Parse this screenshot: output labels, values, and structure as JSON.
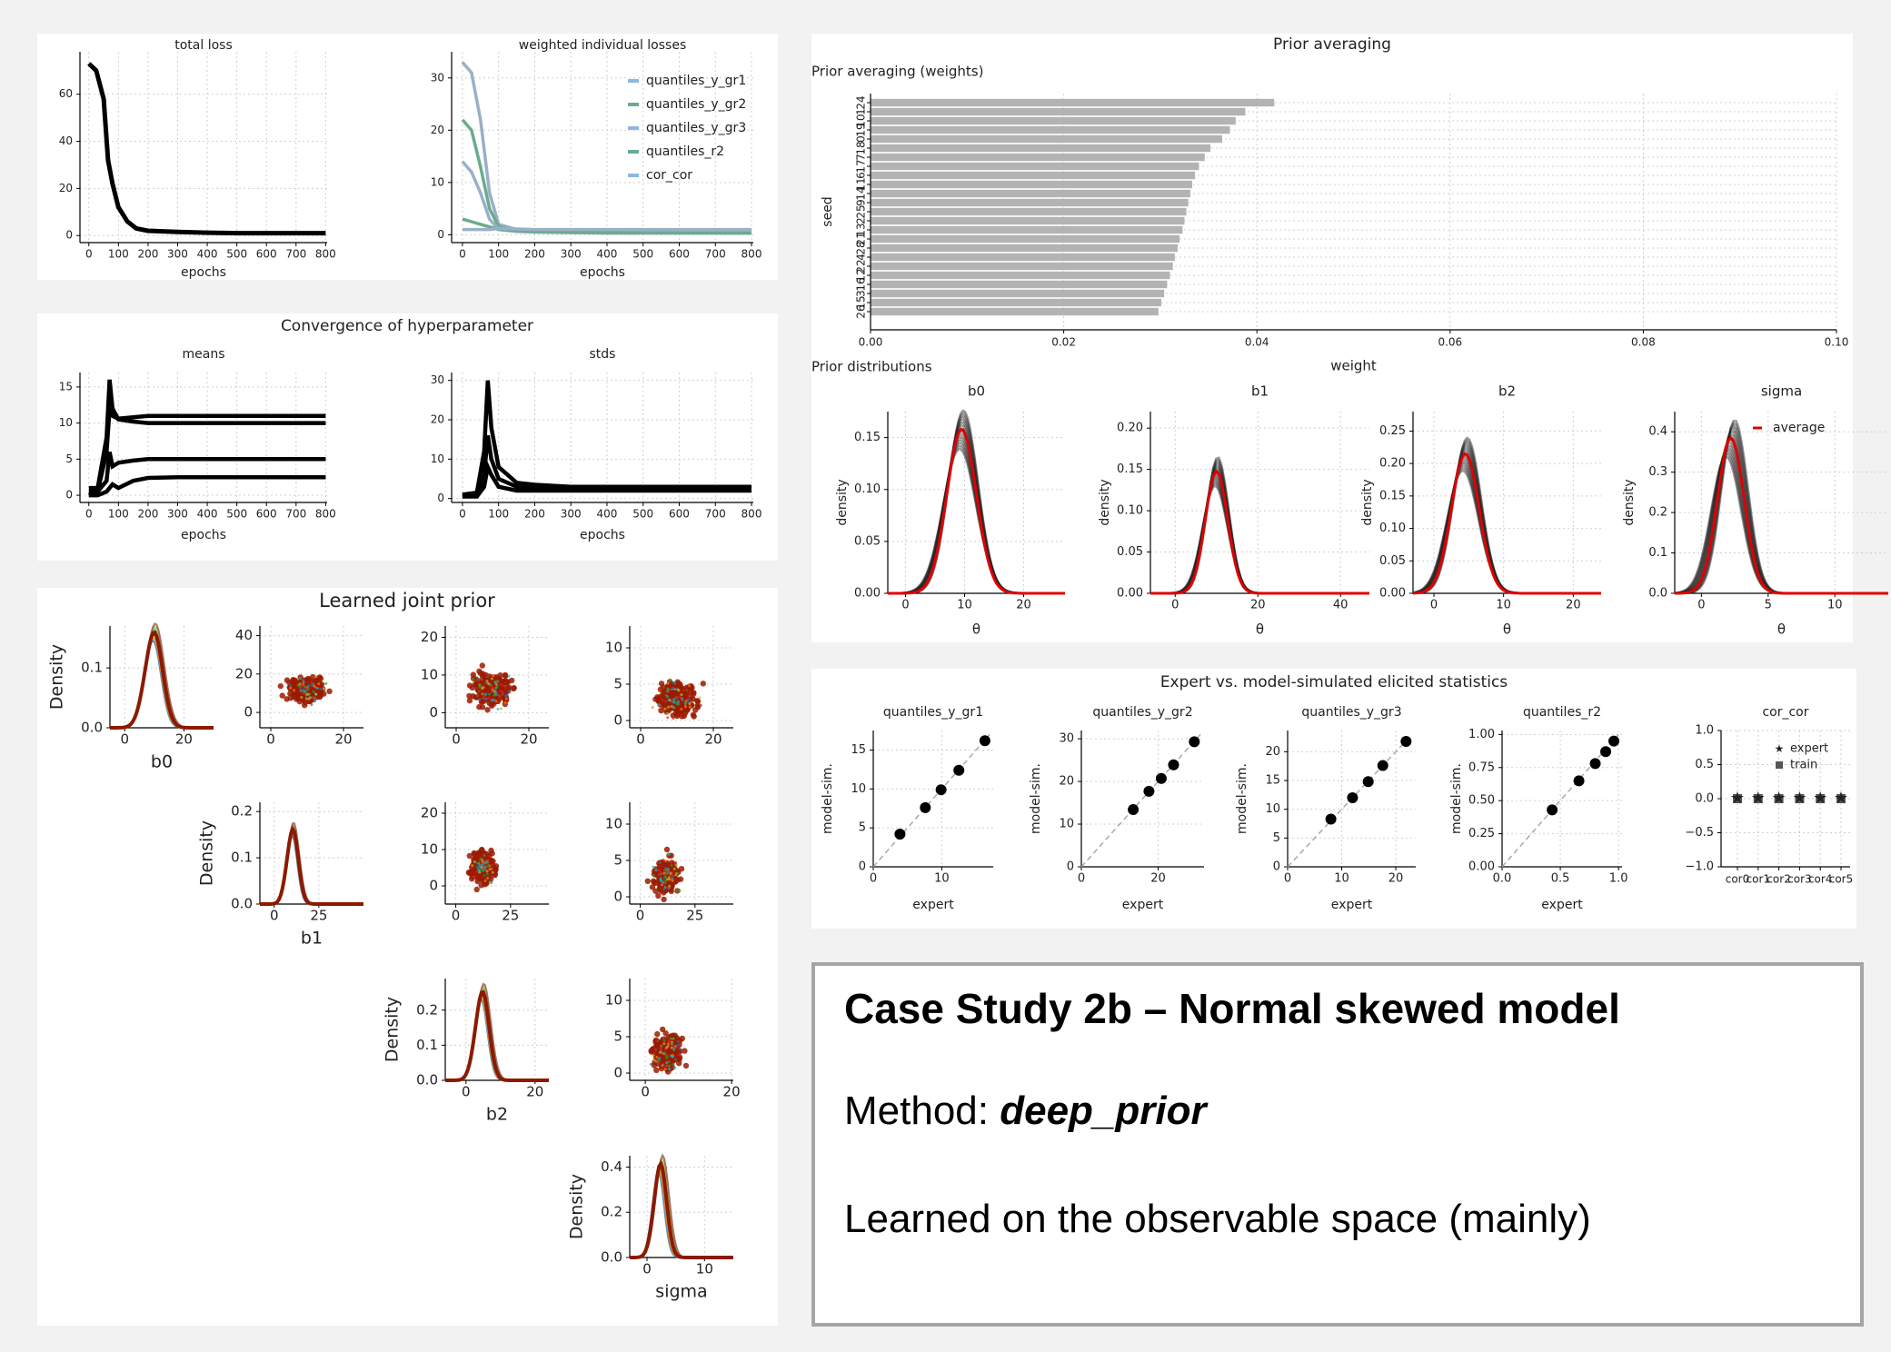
{
  "colors": {
    "loss_line": "#000000",
    "legend_blue": "#8fb8de",
    "legend_green": "#6aab8e",
    "average_line": "#e00000",
    "bar_fill": "#b3b3b3",
    "grid": "#d0d0d0"
  },
  "loss_panel": {
    "total_title": "total loss",
    "weighted_title": "weighted individual losses",
    "xlabel": "epochs",
    "x_ticks": [
      "0",
      "100",
      "200",
      "300",
      "400",
      "500",
      "600",
      "700",
      "800"
    ],
    "total_y_ticks": [
      "0",
      "20",
      "40",
      "60"
    ],
    "weighted_y_ticks": [
      "0",
      "10",
      "20",
      "30"
    ],
    "legend": [
      "quantiles_y_gr1",
      "quantiles_y_gr2",
      "quantiles_y_gr3",
      "quantiles_r2",
      "cor_cor"
    ]
  },
  "convergence_panel": {
    "title": "Convergence of hyperparameter",
    "means_title": "means",
    "stds_title": "stds",
    "xlabel": "epochs",
    "x_ticks": [
      "0",
      "100",
      "200",
      "300",
      "400",
      "500",
      "600",
      "700",
      "800"
    ],
    "means_y_ticks": [
      "0",
      "5",
      "10",
      "15"
    ],
    "stds_y_ticks": [
      "0",
      "10",
      "20",
      "30"
    ]
  },
  "joint_panel": {
    "title": "Learned joint prior",
    "density_label": "Density",
    "params": [
      "b0",
      "b1",
      "b2",
      "sigma"
    ],
    "b0_y_ticks": [
      "0.0",
      "0.1"
    ],
    "b1_y_ticks": [
      "0.0",
      "0.1",
      "0.2"
    ],
    "b2_y_ticks": [
      "0.0",
      "0.1",
      "0.2"
    ],
    "sigma_y_ticks": [
      "0.0",
      "0.2",
      "0.4"
    ],
    "b0_x_ticks": [
      "0",
      "20"
    ],
    "b1_x_ticks": [
      "0",
      "25"
    ],
    "b2_x_ticks": [
      "0",
      "20"
    ],
    "sigma_x_ticks": [
      "0",
      "10"
    ],
    "scatter_y_ticks": {
      "b1": [
        "0",
        "20",
        "40"
      ],
      "b2_row1": [
        "0",
        "10",
        "20"
      ],
      "sigma_row1": [
        "0",
        "5",
        "10"
      ],
      "b2_row2": [
        "0",
        "10",
        "20"
      ],
      "sigma_row2": [
        "0",
        "5",
        "10"
      ],
      "sigma_row3": [
        "0",
        "5",
        "10"
      ]
    }
  },
  "prior_panel": {
    "title": "Prior averaging",
    "weights_title": "Prior averaging (weights)",
    "seed_label": "seed",
    "weight_label": "weight",
    "dist_title": "Prior distributions",
    "theta_label": "θ",
    "density_label": "density",
    "average_label": "average",
    "x_ticks": [
      "0.00",
      "0.02",
      "0.04",
      "0.06",
      "0.08",
      "0.10"
    ],
    "dist_titles": [
      "b0",
      "b1",
      "b2",
      "sigma"
    ],
    "dist_y_ticks": [
      [
        "0.00",
        "0.05",
        "0.10",
        "0.15"
      ],
      [
        "0.00",
        "0.05",
        "0.10",
        "0.15",
        "0.20"
      ],
      [
        "0.00",
        "0.05",
        "0.10",
        "0.15",
        "0.20",
        "0.25"
      ],
      [
        "0.0",
        "0.1",
        "0.2",
        "0.3",
        "0.4"
      ]
    ],
    "dist_x_ticks": [
      [
        "0",
        "10",
        "20"
      ],
      [
        "0",
        "20",
        "40"
      ],
      [
        "0",
        "10",
        "20"
      ],
      [
        "0",
        "5",
        "10"
      ]
    ]
  },
  "elicit_panel": {
    "title": "Expert vs. model-simulated elicited statistics",
    "xlabel": "expert",
    "ylabel": "model-sim.",
    "subtitles": [
      "quantiles_y_gr1",
      "quantiles_y_gr2",
      "quantiles_y_gr3",
      "quantiles_r2",
      "cor_cor"
    ],
    "y_ticks": [
      [
        "0",
        "5",
        "10",
        "15"
      ],
      [
        "0",
        "10",
        "20",
        "30"
      ],
      [
        "0",
        "5",
        "10",
        "15",
        "20"
      ],
      [
        "0.00",
        "0.25",
        "0.50",
        "0.75",
        "1.00"
      ],
      [
        "−1.0",
        "−0.5",
        "0.0",
        "0.5",
        "1.0"
      ]
    ],
    "x_ticks": [
      [
        "0",
        "10"
      ],
      [
        "0",
        "20"
      ],
      [
        "0",
        "10",
        "20"
      ],
      [
        "0.0",
        "0.5",
        "1.0"
      ]
    ],
    "cor_x_ticks": [
      "cor0",
      "cor1",
      "cor2",
      "cor3",
      "cor4",
      "cor5"
    ],
    "legend_expert": "expert",
    "legend_train": "train"
  },
  "case_box": {
    "title": "Case Study 2b – Normal skewed model",
    "method_prefix": "Method: ",
    "method_name": "deep_prior",
    "note": "Learned on the observable space (mainly)"
  },
  "chart_data": [
    {
      "type": "line",
      "title": "total loss",
      "xlabel": "epochs",
      "xlim": [
        0,
        800
      ],
      "ylim": [
        0,
        75
      ],
      "x": [
        0,
        25,
        50,
        65,
        80,
        100,
        130,
        160,
        200,
        300,
        400,
        500,
        600,
        700,
        800
      ],
      "series": [
        {
          "values": [
            73,
            70,
            58,
            32,
            22,
            12,
            6,
            3,
            2,
            1.5,
            1.2,
            1,
            1,
            1,
            1
          ]
        }
      ]
    },
    {
      "type": "line",
      "title": "weighted individual losses",
      "xlabel": "epochs",
      "xlim": [
        0,
        800
      ],
      "ylim": [
        0,
        35
      ],
      "x": [
        0,
        25,
        50,
        75,
        100,
        150,
        200,
        300,
        400,
        500,
        600,
        700,
        800
      ],
      "series": [
        {
          "name": "quantiles_y_gr1",
          "values": [
            33,
            31,
            22,
            8,
            2,
            1,
            0.8,
            0.6,
            0.5,
            0.4,
            0.4,
            0.3,
            0.3
          ]
        },
        {
          "name": "quantiles_y_gr2",
          "values": [
            22,
            20,
            13,
            5,
            1.5,
            0.8,
            0.6,
            0.5,
            0.4,
            0.4,
            0.3,
            0.3,
            0.3
          ]
        },
        {
          "name": "quantiles_y_gr3",
          "values": [
            14,
            12,
            8,
            3,
            1,
            0.6,
            0.5,
            0.4,
            0.3,
            0.3,
            0.3,
            0.3,
            0.3
          ]
        },
        {
          "name": "quantiles_r2",
          "values": [
            3,
            2.5,
            2,
            1.5,
            1,
            0.8,
            0.6,
            0.5,
            0.4,
            0.4,
            0.4,
            0.4,
            0.4
          ]
        },
        {
          "name": "cor_cor",
          "values": [
            1,
            1,
            1,
            1,
            1.2,
            1.1,
            1,
            1,
            1,
            1,
            1,
            1,
            1
          ]
        }
      ]
    },
    {
      "type": "line",
      "title": "means",
      "xlabel": "epochs",
      "xlim": [
        0,
        800
      ],
      "ylim": [
        -1,
        17
      ],
      "x": [
        0,
        30,
        60,
        70,
        80,
        100,
        150,
        200,
        300,
        400,
        500,
        600,
        700,
        800
      ],
      "series": [
        {
          "values": [
            1,
            1,
            8,
            16,
            12,
            10.5,
            10.2,
            10,
            10,
            10,
            10,
            10,
            10,
            10
          ]
        },
        {
          "values": [
            0.5,
            0.5,
            6,
            12,
            11,
            10.6,
            10.8,
            11,
            11,
            11,
            11,
            11,
            11,
            11
          ]
        },
        {
          "values": [
            0,
            0.5,
            2,
            6,
            4,
            4.5,
            4.8,
            5,
            5,
            5,
            5,
            5,
            5,
            5
          ]
        },
        {
          "values": [
            0,
            0,
            0.5,
            1,
            1.5,
            1,
            2,
            2.4,
            2.5,
            2.5,
            2.5,
            2.5,
            2.5,
            2.5
          ]
        }
      ]
    },
    {
      "type": "line",
      "title": "stds",
      "xlabel": "epochs",
      "xlim": [
        0,
        800
      ],
      "ylim": [
        -1,
        32
      ],
      "x": [
        0,
        40,
        60,
        70,
        80,
        100,
        150,
        200,
        300,
        400,
        500,
        600,
        700,
        800
      ],
      "series": [
        {
          "values": [
            1,
            1.5,
            12,
            30,
            18,
            8,
            4,
            3.5,
            3,
            3,
            3,
            3,
            3,
            3
          ]
        },
        {
          "values": [
            0.5,
            1,
            6,
            16,
            10,
            5,
            3,
            2.5,
            2.5,
            2.5,
            2.5,
            2.5,
            2.5,
            2.5
          ]
        },
        {
          "values": [
            0.5,
            0.5,
            3,
            8,
            6,
            3,
            2,
            2,
            2,
            2,
            2,
            2,
            2,
            2
          ]
        }
      ]
    },
    {
      "type": "bar",
      "title": "Prior averaging (weights)",
      "xlabel": "weight",
      "ylabel": "seed",
      "xlim": [
        0,
        0.1
      ],
      "categories": [
        "24",
        "1",
        "10",
        "19",
        "0",
        "18",
        "7",
        "17",
        "6",
        "11",
        "14",
        "9",
        "25",
        "2",
        "13",
        "21",
        "28",
        "4",
        "22",
        "12",
        "16",
        "3",
        "15",
        "26"
      ],
      "values": [
        0.0418,
        0.0388,
        0.0378,
        0.0372,
        0.0364,
        0.0352,
        0.0346,
        0.034,
        0.0336,
        0.0333,
        0.0331,
        0.0329,
        0.0327,
        0.0325,
        0.0323,
        0.032,
        0.0318,
        0.0315,
        0.0313,
        0.031,
        0.0307,
        0.0304,
        0.0301,
        0.0298
      ]
    },
    {
      "type": "line",
      "title": "b0",
      "xlabel": "θ",
      "ylabel": "density",
      "xlim": [
        -3,
        27
      ],
      "ylim": [
        0,
        0.175
      ],
      "series": [
        {
          "name": "average",
          "mean": 9.5,
          "sd": 2.5,
          "peak": 0.158
        }
      ]
    },
    {
      "type": "line",
      "title": "b1",
      "xlabel": "θ",
      "ylabel": "density",
      "xlim": [
        -6,
        47
      ],
      "ylim": [
        0,
        0.22
      ],
      "series": [
        {
          "name": "average",
          "mean": 10,
          "sd": 2.7,
          "peak": 0.148
        }
      ]
    },
    {
      "type": "line",
      "title": "b2",
      "xlabel": "θ",
      "ylabel": "density",
      "xlim": [
        -3,
        24
      ],
      "ylim": [
        0,
        0.28
      ],
      "series": [
        {
          "name": "average",
          "mean": 4.5,
          "sd": 2,
          "peak": 0.215
        }
      ]
    },
    {
      "type": "line",
      "title": "sigma",
      "xlabel": "θ",
      "ylabel": "density",
      "xlim": [
        -2,
        14
      ],
      "ylim": [
        0,
        0.45
      ],
      "series": [
        {
          "name": "average",
          "mean": 2.2,
          "sd": 1,
          "peak": 0.385
        }
      ]
    },
    {
      "type": "scatter",
      "title": "quantiles_y_gr1",
      "xlabel": "expert",
      "ylabel": "model-sim.",
      "xlim": [
        0,
        17
      ],
      "ylim": [
        0,
        17
      ],
      "x": [
        3.9,
        7.6,
        9.9,
        12.5,
        16.3
      ],
      "y": [
        4.2,
        7.6,
        9.9,
        12.4,
        16.2
      ]
    },
    {
      "type": "scatter",
      "title": "quantiles_y_gr2",
      "xlabel": "expert",
      "ylabel": "model-sim.",
      "xlim": [
        0,
        31
      ],
      "ylim": [
        0,
        31
      ],
      "x": [
        13.5,
        17.6,
        20.8,
        24,
        29.4
      ],
      "y": [
        13.4,
        17.7,
        20.7,
        23.9,
        29.3
      ]
    },
    {
      "type": "scatter",
      "title": "quantiles_y_gr3",
      "xlabel": "expert",
      "ylabel": "model-sim.",
      "xlim": [
        0,
        23
      ],
      "ylim": [
        0,
        23
      ],
      "x": [
        8,
        12,
        14.9,
        17.6,
        21.9
      ],
      "y": [
        8.3,
        12,
        14.8,
        17.6,
        21.8
      ]
    },
    {
      "type": "scatter",
      "title": "quantiles_r2",
      "xlabel": "expert",
      "ylabel": "model-sim.",
      "xlim": [
        0,
        1
      ],
      "ylim": [
        0,
        1
      ],
      "x": [
        0.43,
        0.66,
        0.8,
        0.89,
        0.96
      ],
      "y": [
        0.43,
        0.65,
        0.78,
        0.87,
        0.95
      ]
    },
    {
      "type": "scatter",
      "title": "cor_cor",
      "ylim": [
        -1,
        1
      ],
      "categories": [
        "cor0",
        "cor1",
        "cor2",
        "cor3",
        "cor4",
        "cor5"
      ],
      "series": [
        {
          "name": "expert",
          "values": [
            0,
            0,
            0,
            0,
            0,
            0
          ]
        },
        {
          "name": "train",
          "values": [
            0,
            0,
            0,
            0,
            0,
            0
          ]
        }
      ]
    }
  ]
}
